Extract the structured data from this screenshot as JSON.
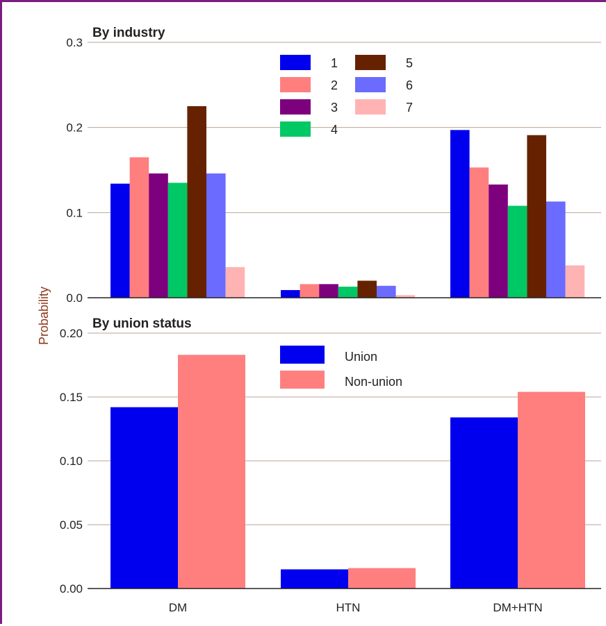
{
  "chart_data": [
    {
      "type": "bar",
      "title": "By industry",
      "ylabel": "Probability",
      "xlabel": "",
      "ylim": [
        0,
        0.3
      ],
      "yticks": [
        "0.0",
        "0.1",
        "0.2",
        "0.3"
      ],
      "categories": [
        "DM",
        "HTN",
        "DM+HTN"
      ],
      "grid": true,
      "legend_position": "top-center",
      "series": [
        {
          "name": "1",
          "color": "#0000ee",
          "values": [
            0.134,
            0.009,
            0.197
          ]
        },
        {
          "name": "2",
          "color": "#ff7f7f",
          "values": [
            0.165,
            0.016,
            0.153
          ]
        },
        {
          "name": "3",
          "color": "#7d007d",
          "values": [
            0.146,
            0.016,
            0.133
          ]
        },
        {
          "name": "4",
          "color": "#00c864",
          "values": [
            0.135,
            0.013,
            0.108
          ]
        },
        {
          "name": "5",
          "color": "#662200",
          "values": [
            0.225,
            0.02,
            0.191
          ]
        },
        {
          "name": "6",
          "color": "#6b6bff",
          "values": [
            0.146,
            0.014,
            0.113
          ]
        },
        {
          "name": "7",
          "color": "#ffb3b3",
          "values": [
            0.036,
            0.003,
            0.038
          ]
        }
      ]
    },
    {
      "type": "bar",
      "title": "By union status",
      "ylabel": "Probability",
      "xlabel": "",
      "ylim": [
        0,
        0.2
      ],
      "yticks": [
        "0.00",
        "0.05",
        "0.10",
        "0.15",
        "0.20"
      ],
      "categories": [
        "DM",
        "HTN",
        "DM+HTN"
      ],
      "grid": true,
      "legend_position": "top-center",
      "series": [
        {
          "name": "Union",
          "color": "#0000ee",
          "values": [
            0.142,
            0.015,
            0.134
          ]
        },
        {
          "name": "Non-union",
          "color": "#ff7f7f",
          "values": [
            0.183,
            0.016,
            0.154
          ]
        }
      ]
    }
  ]
}
